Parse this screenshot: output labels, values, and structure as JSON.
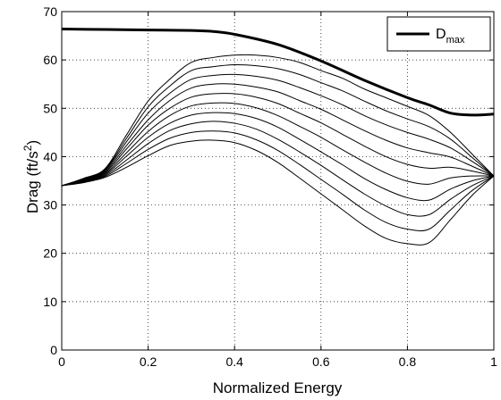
{
  "chart_data": {
    "type": "line",
    "xlabel": "Normalized Energy",
    "ylabel": {
      "base": "Drag (ft/s",
      "sup": "2",
      "close": ")"
    },
    "xlim": [
      0,
      1
    ],
    "ylim": [
      0,
      70
    ],
    "xticks": [
      "0",
      "0.2",
      "0.4",
      "0.6",
      "0.8",
      "1"
    ],
    "yticks": [
      "0",
      "10",
      "20",
      "30",
      "40",
      "50",
      "60",
      "70"
    ],
    "grid": true,
    "legend": {
      "position": "top-right",
      "entries": [
        {
          "main": "D",
          "sub": "max"
        }
      ]
    },
    "dmax_series": {
      "x": [
        0,
        0.1,
        0.2,
        0.3,
        0.35,
        0.4,
        0.5,
        0.6,
        0.7,
        0.8,
        0.85,
        0.9,
        0.95,
        1.0
      ],
      "y": [
        66.4,
        66.3,
        66.2,
        66.1,
        65.9,
        65.3,
        63.2,
        59.8,
        55.8,
        52.2,
        50.7,
        49.0,
        48.6,
        48.8
      ]
    },
    "family": {
      "x": [
        0,
        0.05,
        0.1,
        0.15,
        0.2,
        0.25,
        0.3,
        0.35,
        0.4,
        0.45,
        0.5,
        0.55,
        0.6,
        0.65,
        0.7,
        0.75,
        0.8,
        0.85,
        0.9,
        0.95,
        1.0
      ],
      "series": [
        [
          34.0,
          35.5,
          37.5,
          44.5,
          51.5,
          56.0,
          59.5,
          60.5,
          61.0,
          61.0,
          60.5,
          59.5,
          57.8,
          56.2,
          54.0,
          52.2,
          50.4,
          48.5,
          45.0,
          40.5,
          36.0
        ],
        [
          34.0,
          35.4,
          37.3,
          43.8,
          50.3,
          54.6,
          57.8,
          58.6,
          59.0,
          58.8,
          58.2,
          57.0,
          55.3,
          53.6,
          51.5,
          49.5,
          47.8,
          46.2,
          43.6,
          39.8,
          36.0
        ],
        [
          34.0,
          35.3,
          37.1,
          43.1,
          49.0,
          53.1,
          56.0,
          56.8,
          57.0,
          56.6,
          55.8,
          54.3,
          52.6,
          50.7,
          48.5,
          46.6,
          45.0,
          43.6,
          41.8,
          39.0,
          36.0
        ],
        [
          34.0,
          35.2,
          36.9,
          42.3,
          47.6,
          51.6,
          54.2,
          55.0,
          55.0,
          54.4,
          53.4,
          51.6,
          49.8,
          47.6,
          45.4,
          43.4,
          41.8,
          40.8,
          39.9,
          38.0,
          36.0
        ],
        [
          34.0,
          35.1,
          36.7,
          41.6,
          46.5,
          50.0,
          52.3,
          53.0,
          53.0,
          52.3,
          51.0,
          49.0,
          47.0,
          44.6,
          42.2,
          40.0,
          38.4,
          37.6,
          37.8,
          37.0,
          36.0
        ],
        [
          34.0,
          35.0,
          36.5,
          40.8,
          45.2,
          48.5,
          50.5,
          51.1,
          51.0,
          50.1,
          48.5,
          46.3,
          44.0,
          41.4,
          38.9,
          36.6,
          34.9,
          34.3,
          35.6,
          36.0,
          36.0
        ],
        [
          34.0,
          34.9,
          36.3,
          40.1,
          44.0,
          46.9,
          48.6,
          49.1,
          48.9,
          47.9,
          46.1,
          43.6,
          41.0,
          38.3,
          35.5,
          33.2,
          31.5,
          31.0,
          33.3,
          35.0,
          36.0
        ],
        [
          34.0,
          34.8,
          36.1,
          39.3,
          42.7,
          45.4,
          46.8,
          47.3,
          46.9,
          45.7,
          43.6,
          41.0,
          38.2,
          35.2,
          32.3,
          29.8,
          28.0,
          28.0,
          31.2,
          34.0,
          36.0
        ],
        [
          34.0,
          34.7,
          35.9,
          38.6,
          41.5,
          43.8,
          45.0,
          45.3,
          44.9,
          43.5,
          41.3,
          38.4,
          35.3,
          32.2,
          29.0,
          26.4,
          25.0,
          25.0,
          29.0,
          33.0,
          36.0
        ],
        [
          34.0,
          34.6,
          35.7,
          37.8,
          40.2,
          42.3,
          43.2,
          43.4,
          42.9,
          41.3,
          38.8,
          35.6,
          32.3,
          29.0,
          25.7,
          23.1,
          22.0,
          22.2,
          27.0,
          32.0,
          36.0
        ]
      ]
    }
  }
}
